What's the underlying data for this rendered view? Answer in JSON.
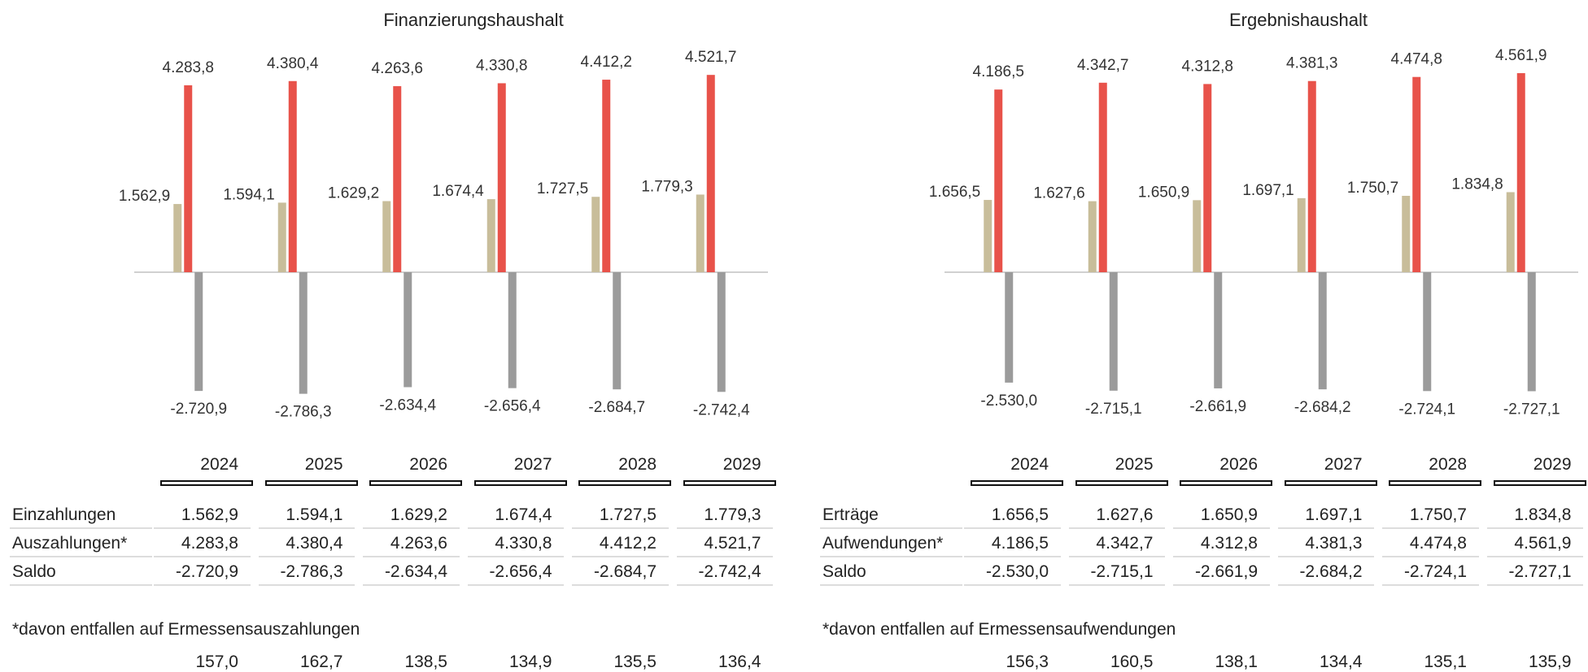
{
  "years": [
    "2024",
    "2025",
    "2026",
    "2027",
    "2028",
    "2029"
  ],
  "colors": {
    "ein": "#c8bd9a",
    "aus": "#e8524a",
    "saldo": "#9b9b9b",
    "axis": "#d0d0d0"
  },
  "panels": [
    {
      "title": "Finanzierungshaushalt",
      "rows": [
        {
          "label": "Einzahlungen",
          "values": [
            "1.562,9",
            "1.594,1",
            "1.629,2",
            "1.674,4",
            "1.727,5",
            "1.779,3"
          ]
        },
        {
          "label": "Auszahlungen*",
          "values": [
            "4.283,8",
            "4.380,4",
            "4.263,6",
            "4.330,8",
            "4.412,2",
            "4.521,7"
          ]
        },
        {
          "label": "Saldo",
          "values": [
            "-2.720,9",
            "-2.786,3",
            "-2.634,4",
            "-2.656,4",
            "-2.684,7",
            "-2.742,4"
          ]
        }
      ],
      "note": "*davon entfallen auf Ermessensauszahlungen",
      "note_values": [
        "157,0",
        "162,7",
        "138,5",
        "134,9",
        "135,5",
        "136,4"
      ]
    },
    {
      "title": "Ergebnishaushalt",
      "rows": [
        {
          "label": "Erträge",
          "values": [
            "1.656,5",
            "1.627,6",
            "1.650,9",
            "1.697,1",
            "1.750,7",
            "1.834,8"
          ]
        },
        {
          "label": "Aufwendungen*",
          "values": [
            "4.186,5",
            "4.342,7",
            "4.312,8",
            "4.381,3",
            "4.474,8",
            "4.561,9"
          ]
        },
        {
          "label": "Saldo",
          "values": [
            "-2.530,0",
            "-2.715,1",
            "-2.661,9",
            "-2.684,2",
            "-2.724,1",
            "-2.727,1"
          ]
        }
      ],
      "note": "*davon entfallen auf Ermessensaufwendungen",
      "note_values": [
        "156,3",
        "160,5",
        "138,1",
        "134,4",
        "135,1",
        "135,9"
      ]
    }
  ],
  "chart_data": [
    {
      "type": "bar",
      "title": "Finanzierungshaushalt",
      "categories": [
        "2024",
        "2025",
        "2026",
        "2027",
        "2028",
        "2029"
      ],
      "series": [
        {
          "name": "Einzahlungen",
          "values": [
            1562.9,
            1594.1,
            1629.2,
            1674.4,
            1727.5,
            1779.3
          ],
          "labels": [
            "1.562,9",
            "1.594,1",
            "1.629,2",
            "1.674,4",
            "1.727,5",
            "1.779,3"
          ]
        },
        {
          "name": "Auszahlungen*",
          "values": [
            4283.8,
            4380.4,
            4263.6,
            4330.8,
            4412.2,
            4521.7
          ],
          "labels": [
            "4.283,8",
            "4.380,4",
            "4.263,6",
            "4.330,8",
            "4.412,2",
            "4.521,7"
          ]
        },
        {
          "name": "Saldo",
          "values": [
            -2720.9,
            -2786.3,
            -2634.4,
            -2656.4,
            -2684.7,
            -2742.4
          ],
          "labels": [
            "-2.720,9",
            "-2.786,3",
            "-2.634,4",
            "-2.656,4",
            "-2.684,7",
            "-2.742,4"
          ]
        }
      ]
    },
    {
      "type": "bar",
      "title": "Ergebnishaushalt",
      "categories": [
        "2024",
        "2025",
        "2026",
        "2027",
        "2028",
        "2029"
      ],
      "series": [
        {
          "name": "Erträge",
          "values": [
            1656.5,
            1627.6,
            1650.9,
            1697.1,
            1750.7,
            1834.8
          ],
          "labels": [
            "1.656,5",
            "1.627,6",
            "1.650,9",
            "1.697,1",
            "1.750,7",
            "1.834,8"
          ]
        },
        {
          "name": "Aufwendungen*",
          "values": [
            4186.5,
            4342.7,
            4312.8,
            4381.3,
            4474.8,
            4561.9
          ],
          "labels": [
            "4.186,5",
            "4.342,7",
            "4.312,8",
            "4.381,3",
            "4.474,8",
            "4.561,9"
          ]
        },
        {
          "name": "Saldo",
          "values": [
            -2530.0,
            -2715.1,
            -2661.9,
            -2684.2,
            -2724.1,
            -2727.1
          ],
          "labels": [
            "-2.530,0",
            "-2.715,1",
            "-2.661,9",
            "-2.684,2",
            "-2.724,1",
            "-2.727,1"
          ]
        }
      ]
    }
  ]
}
